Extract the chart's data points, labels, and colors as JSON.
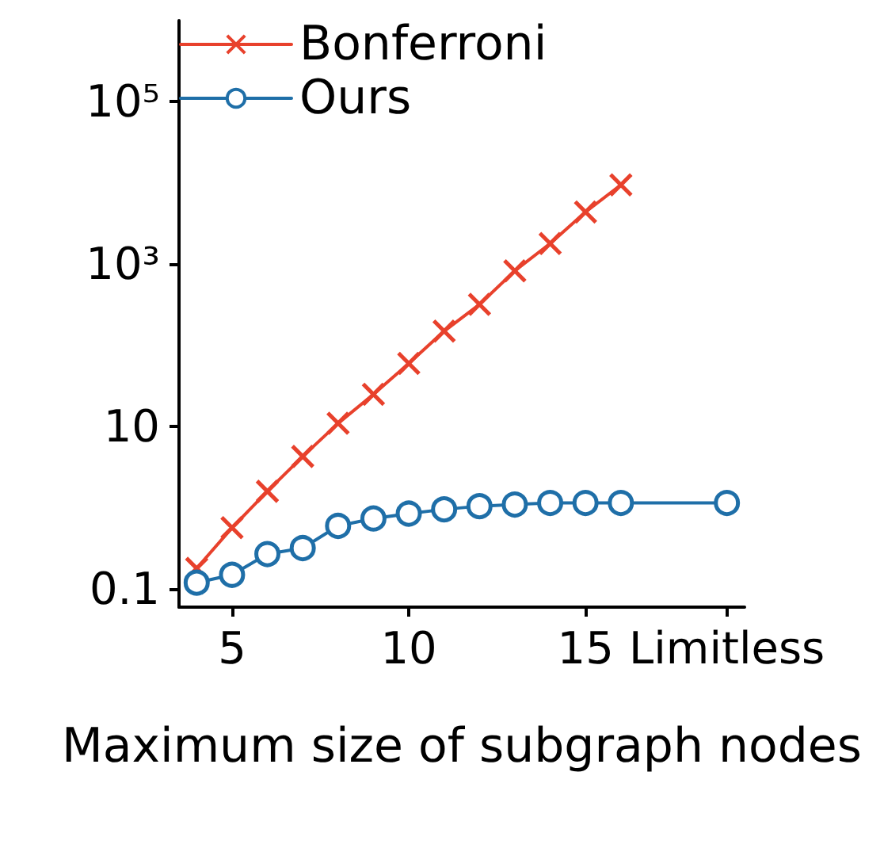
{
  "chart_data": {
    "type": "line",
    "xlabel": "Maximum size of subgraph nodes",
    "log": "y",
    "grid": false,
    "legend": "top left",
    "xlim": [
      3.5,
      19.5
    ],
    "xticks": [
      5,
      10,
      15,
      {
        "value": 19,
        "label": "Limitless"
      }
    ],
    "ylim": [
      0.06,
      1000000
    ],
    "yticks": [
      0.1,
      10,
      {
        "value": 1000,
        "label": "10³"
      },
      {
        "value": 100000,
        "label": "10⁵"
      }
    ],
    "series": [
      {
        "name": "Bonferroni",
        "color": "#e8412c",
        "marker": "cross",
        "x": [
          4,
          5,
          6,
          7,
          8,
          9,
          10,
          11,
          12,
          13,
          14,
          15,
          16
        ],
        "values": [
          0.18,
          0.57,
          1.6,
          4.3,
          11,
          25,
          60,
          150,
          320,
          830,
          1800,
          4400,
          9500
        ]
      },
      {
        "name": "Ours",
        "color": "#1f6fa8",
        "marker": "circle",
        "x": [
          4,
          5,
          6,
          7,
          8,
          9,
          10,
          11,
          12,
          13,
          14,
          15,
          16,
          19
        ],
        "values": [
          0.12,
          0.15,
          0.27,
          0.32,
          0.6,
          0.74,
          0.85,
          0.96,
          1.05,
          1.1,
          1.15,
          1.15,
          1.15,
          1.15
        ]
      }
    ]
  }
}
